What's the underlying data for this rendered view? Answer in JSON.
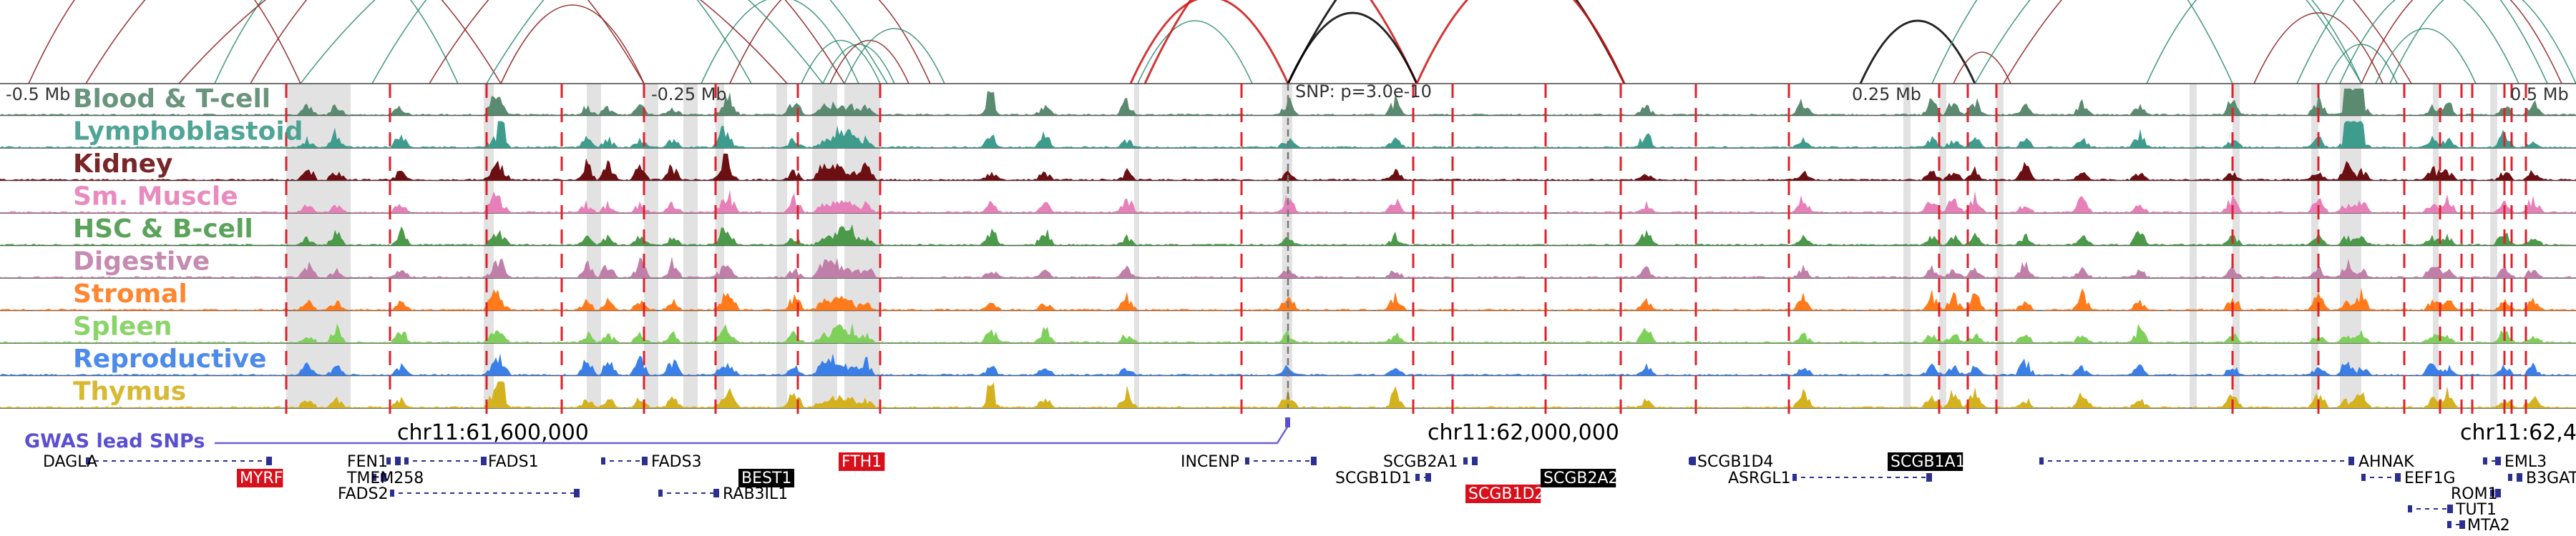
{
  "scale_labels": [
    "-0.5 Mb",
    "-0.25 Mb",
    "0.25 Mb",
    "0.5 Mb"
  ],
  "snp_label": "SNP: p=3.0e-10",
  "tracks": [
    {
      "name": "Blood & T-cell",
      "color": "#5a8a70"
    },
    {
      "name": "Lymphoblastoid",
      "color": "#3e9c8c"
    },
    {
      "name": "Kidney",
      "color": "#6b0f12"
    },
    {
      "name": "Sm. Muscle",
      "color": "#e77fb8"
    },
    {
      "name": "HSC & B-cell",
      "color": "#4a9a4a"
    },
    {
      "name": "Digestive",
      "color": "#c07fa8"
    },
    {
      "name": "Stromal",
      "color": "#ff7a1a"
    },
    {
      "name": "Spleen",
      "color": "#7fd05a"
    },
    {
      "name": "Reproductive",
      "color": "#3a7fe8"
    },
    {
      "name": "Thymus",
      "color": "#d4b21f"
    }
  ],
  "gwas_label": "GWAS lead SNPs",
  "coordinates": [
    "chr11:61,600,000",
    "chr11:62,000,000",
    "chr11:62,4"
  ],
  "genes": [
    {
      "name": "DAGLA",
      "style": "plain"
    },
    {
      "name": "MYRF",
      "style": "red"
    },
    {
      "name": "FEN1",
      "style": "plain"
    },
    {
      "name": "TMEM258",
      "style": "plain"
    },
    {
      "name": "FADS2",
      "style": "plain"
    },
    {
      "name": "FADS1",
      "style": "plain"
    },
    {
      "name": "FADS3",
      "style": "plain"
    },
    {
      "name": "BEST1",
      "style": "black"
    },
    {
      "name": "RAB3IL1",
      "style": "plain"
    },
    {
      "name": "FTH1",
      "style": "red"
    },
    {
      "name": "INCENP",
      "style": "plain"
    },
    {
      "name": "SCGB2A1",
      "style": "plain"
    },
    {
      "name": "SCGB1D1",
      "style": "plain"
    },
    {
      "name": "SCGB1D2",
      "style": "red"
    },
    {
      "name": "SCGB2A2",
      "style": "black"
    },
    {
      "name": "SCGB1D4",
      "style": "plain"
    },
    {
      "name": "ASRGL1",
      "style": "plain"
    },
    {
      "name": "SCGB1A1",
      "style": "black"
    },
    {
      "name": "AHNAK",
      "style": "plain"
    },
    {
      "name": "EEF1G",
      "style": "plain"
    },
    {
      "name": "EML3",
      "style": "plain"
    },
    {
      "name": "B3GAT",
      "style": "plain"
    },
    {
      "name": "ROM1",
      "style": "plain"
    },
    {
      "name": "TUT1",
      "style": "plain"
    },
    {
      "name": "MTA2",
      "style": "plain"
    }
  ]
}
